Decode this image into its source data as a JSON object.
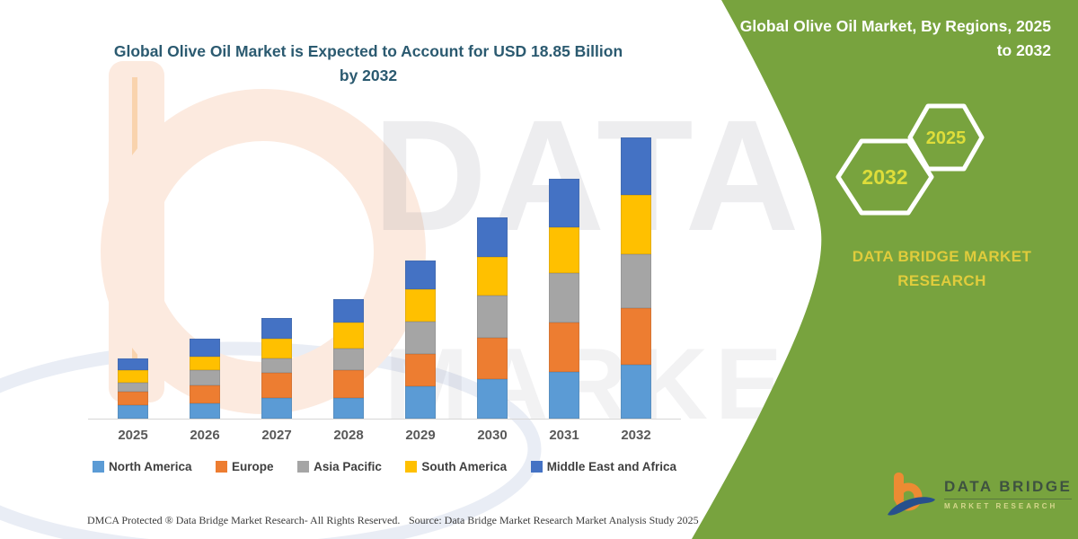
{
  "header": {
    "title": "Global Olive Oil Market is Expected to Account for USD 18.85 Billion by 2032"
  },
  "panel": {
    "title": "Global Olive Oil Market, By Regions, 2025 to 2032",
    "hexagons": {
      "back_year": "2032",
      "front_year": "2025"
    },
    "brand_line1": "DATA BRIDGE MARKET",
    "brand_line2": "RESEARCH",
    "colors": {
      "panel_green": "#78A33E",
      "year_yellow": "#DEDD3A",
      "brand_yellow": "#E0CC3C"
    }
  },
  "watermark": {
    "line1": "DATA BRIDGE",
    "line2": "MARKET RESEARCH"
  },
  "logo": {
    "name": "DATA BRIDGE",
    "tagline": "MARKET RESEARCH"
  },
  "footer": {
    "dmca": "DMCA Protected ® Data Bridge Market Research-  All Rights Reserved.",
    "source": "Source: Data Bridge Market Research  Market Analysis Study 2025"
  },
  "chart_data": {
    "type": "bar",
    "stacked": true,
    "title": "Global Olive Oil Market is Expected to Account for USD 18.85 Billion by 2032",
    "unit": "USD Billion",
    "categories": [
      "2025",
      "2026",
      "2027",
      "2028",
      "2029",
      "2030",
      "2031",
      "2032"
    ],
    "series": [
      {
        "name": "North America",
        "color": "#5B9BD5",
        "values": [
          0.91,
          1.03,
          1.39,
          1.39,
          2.17,
          2.66,
          3.14,
          3.62
        ]
      },
      {
        "name": "Europe",
        "color": "#ED7D31",
        "values": [
          0.91,
          1.21,
          1.69,
          1.87,
          2.17,
          2.78,
          3.32,
          3.81
        ]
      },
      {
        "name": "Asia Pacific",
        "color": "#A5A5A5",
        "values": [
          0.6,
          1.03,
          0.97,
          1.45,
          2.17,
          2.78,
          3.32,
          3.62
        ]
      },
      {
        "name": "South America",
        "color": "#FFC000",
        "values": [
          0.85,
          0.91,
          1.33,
          1.75,
          2.17,
          2.6,
          3.08,
          3.93
        ]
      },
      {
        "name": "Middle East and Africa",
        "color": "#4472C4",
        "values": [
          0.79,
          1.21,
          1.39,
          1.57,
          1.93,
          2.66,
          3.26,
          3.87
        ]
      }
    ],
    "totals": [
      4.06,
      5.39,
      6.77,
      8.03,
      10.61,
      13.48,
      16.12,
      18.85
    ],
    "xlabel": "",
    "ylabel": "",
    "ylim": [
      0,
      18.85
    ],
    "gridlines": false,
    "y_axis_visible": false,
    "legend_position": "bottom"
  }
}
